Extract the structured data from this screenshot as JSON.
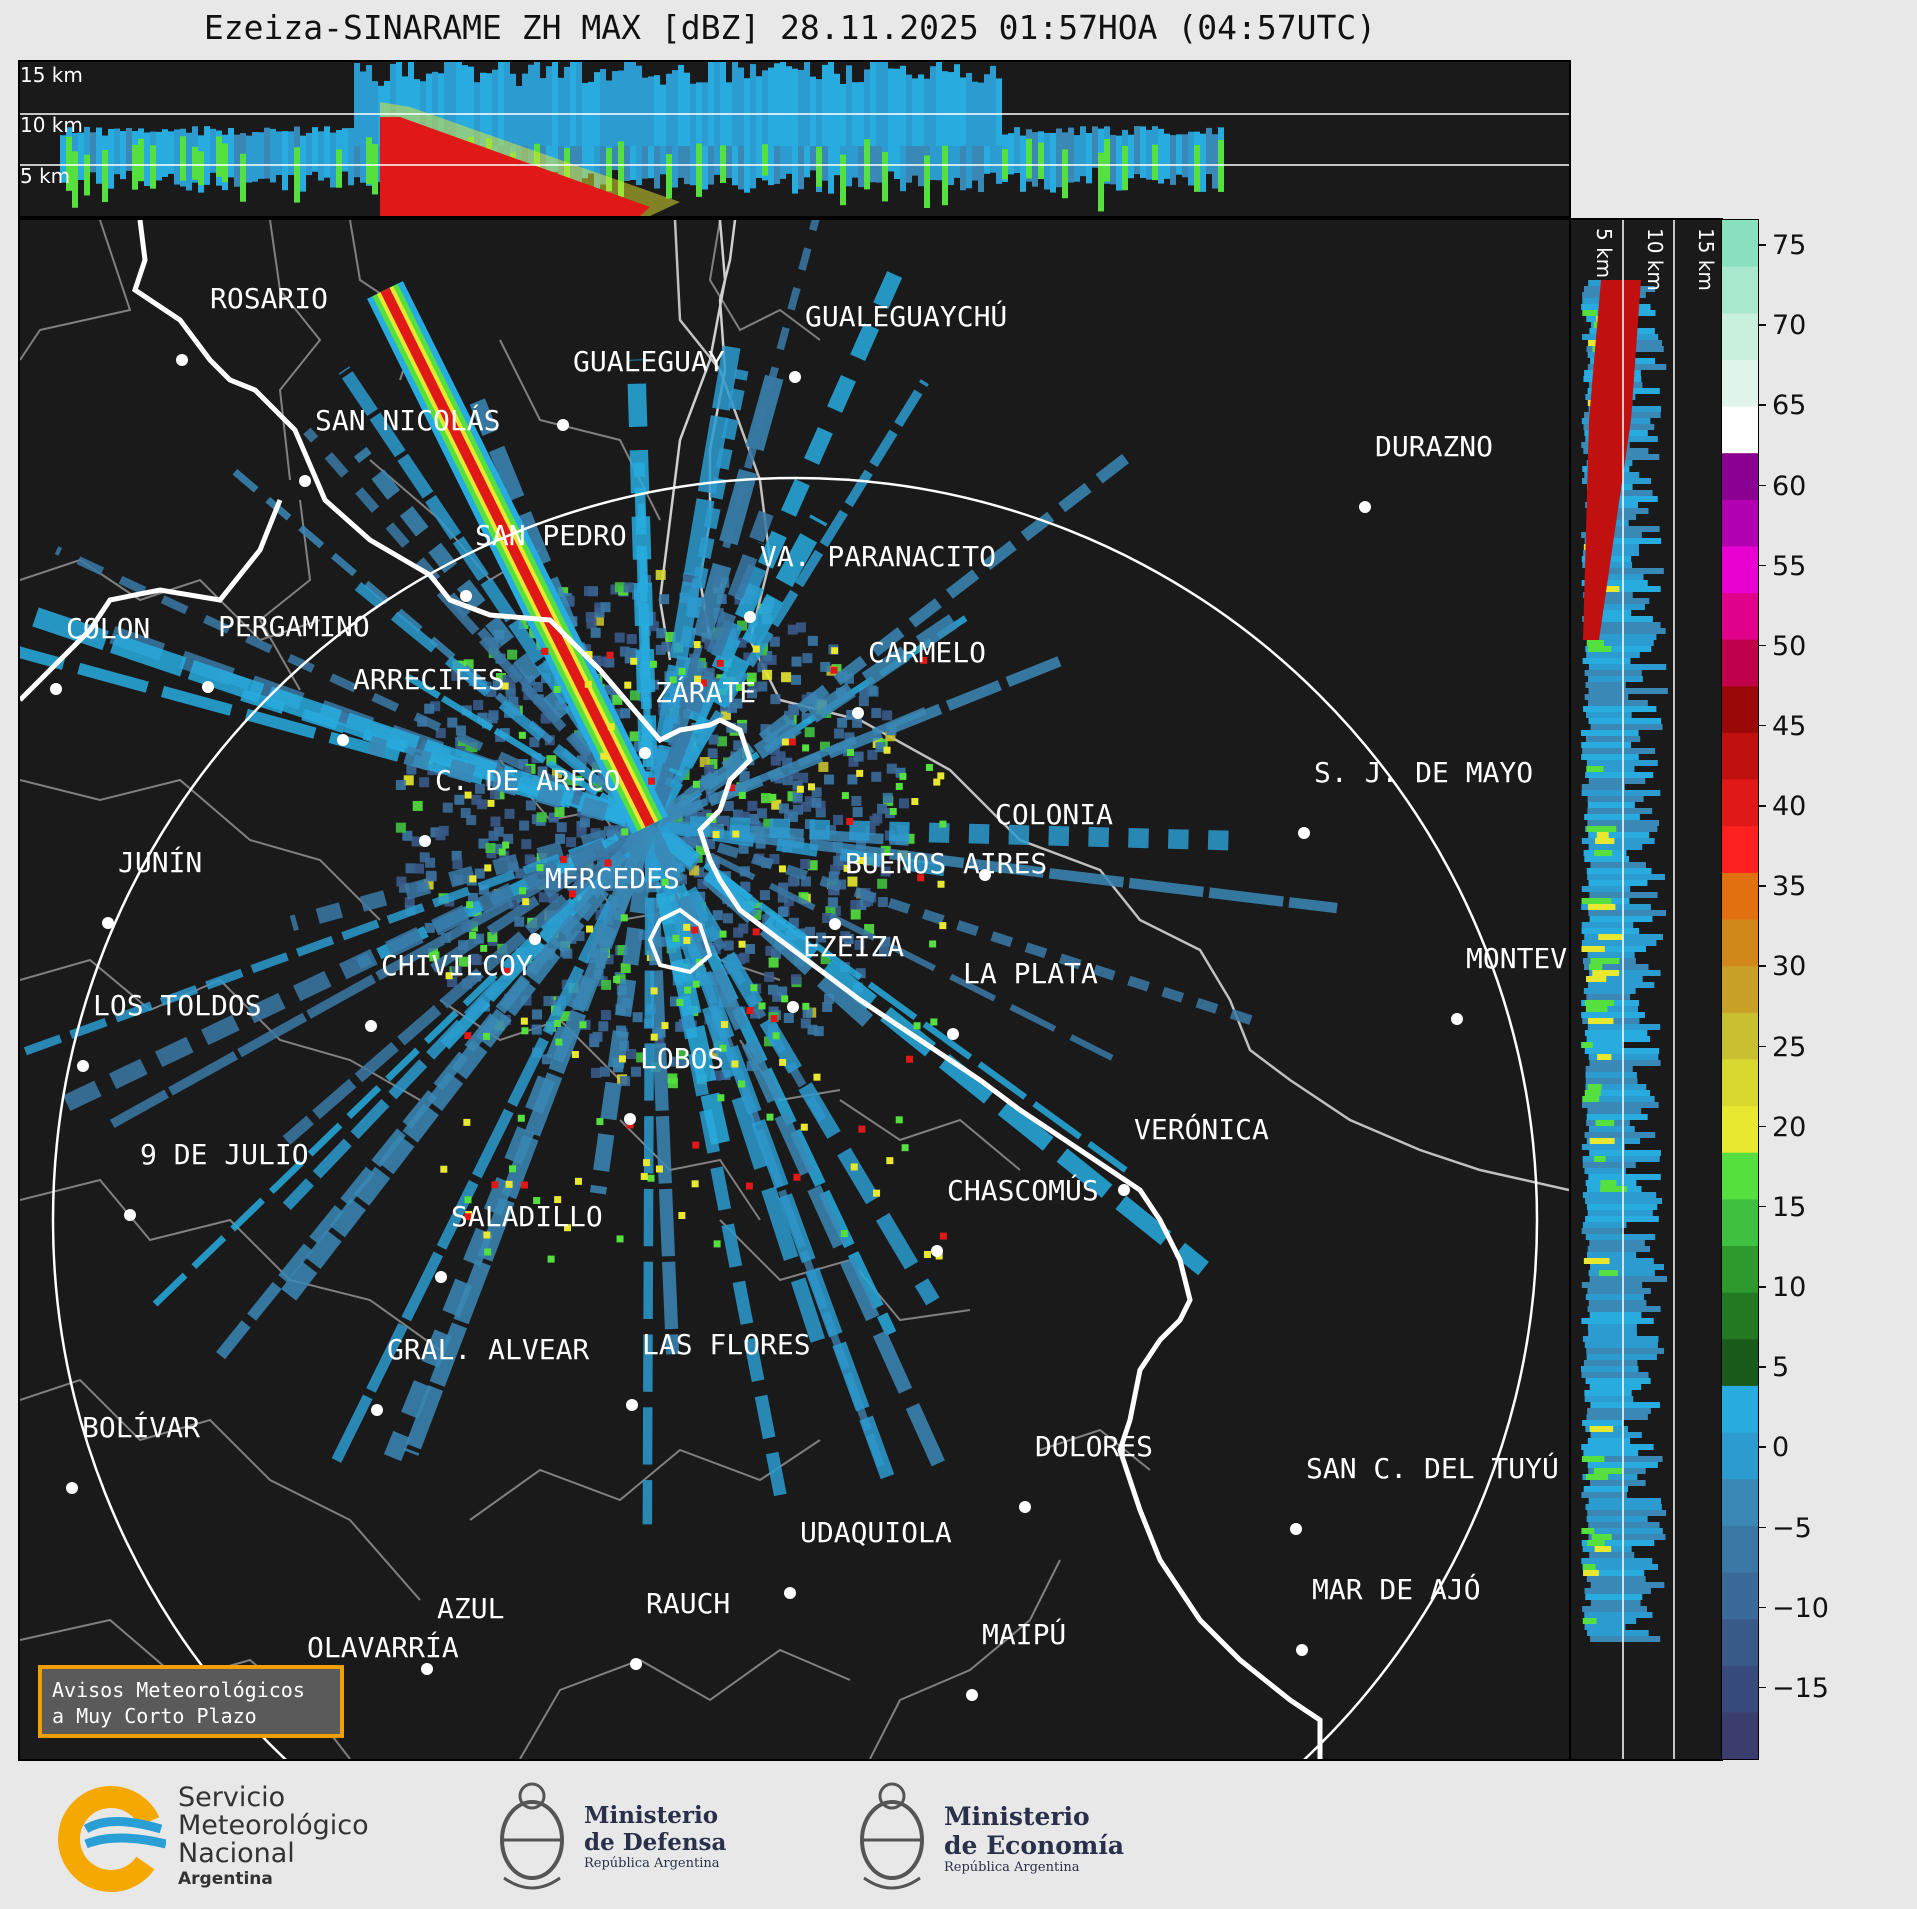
{
  "title": "Ezeiza-SINARAME ZH MAX [dBZ] 28.11.2025 01:57HOA (04:57UTC)",
  "top_panel": {
    "height_labels": [
      "15 km",
      "10 km",
      "5 km"
    ]
  },
  "side_panel": {
    "height_labels": [
      "5 km",
      "10 km",
      "15 km"
    ]
  },
  "colorbar": {
    "ticks": [
      "75",
      "70",
      "65",
      "60",
      "55",
      "50",
      "45",
      "40",
      "35",
      "30",
      "25",
      "20",
      "15",
      "10",
      "5",
      "0",
      "−5",
      "−10",
      "−15"
    ],
    "range": [
      -19.5,
      76.5
    ],
    "colors": {
      "blues": [
        "#3b3d6e",
        "#394a7c",
        "#3a5a8a",
        "#3a6a98",
        "#3a78a6",
        "#3a88b6",
        "#2c9bd0",
        "#28acdf"
      ],
      "greens": [
        "#1a5a1a",
        "#237a23",
        "#2e9a2e",
        "#40c040",
        "#55e040"
      ],
      "yellows": [
        "#e8e830",
        "#d8d830",
        "#c8c030",
        "#c8a028",
        "#d08818",
        "#e07010"
      ],
      "reds": [
        "#ff2020",
        "#e01818",
        "#c01010",
        "#9a0808",
        "#c0004a",
        "#e0008a",
        "#e800d0",
        "#b000b0",
        "#8a0090"
      ],
      "whites": [
        "#ffffff",
        "#e0f5ea",
        "#c8f0dc",
        "#a8e8cc",
        "#88e0be"
      ]
    }
  },
  "cities": [
    {
      "name": "ROSARIO"
    },
    {
      "name": "GUALEGUAYCHÚ"
    },
    {
      "name": "GUALEGUAY"
    },
    {
      "name": "SAN NICOLÁS"
    },
    {
      "name": "DURAZNO"
    },
    {
      "name": "SAN PEDRO"
    },
    {
      "name": "VA. PARANACITO"
    },
    {
      "name": "COLON"
    },
    {
      "name": "PERGAMINO"
    },
    {
      "name": "CARMELO"
    },
    {
      "name": "ARRECIFES"
    },
    {
      "name": "ZÁRATE"
    },
    {
      "name": "S. J. DE MAYO"
    },
    {
      "name": "C. DE ARECO"
    },
    {
      "name": "COLONIA"
    },
    {
      "name": "JUNÍN"
    },
    {
      "name": "BUENOS AIRES"
    },
    {
      "name": "MERCEDES"
    },
    {
      "name": "EZEIZA"
    },
    {
      "name": "MONTEV"
    },
    {
      "name": "CHIVILCOY"
    },
    {
      "name": "LA PLATA"
    },
    {
      "name": "LOS TOLDOS"
    },
    {
      "name": "LOBOS"
    },
    {
      "name": "VERÓNICA"
    },
    {
      "name": "9 DE JULIO"
    },
    {
      "name": "CHASCOMÚS"
    },
    {
      "name": "SALADILLO"
    },
    {
      "name": "GRAL. ALVEAR"
    },
    {
      "name": "LAS FLORES"
    },
    {
      "name": "BOLÍVAR"
    },
    {
      "name": "DOLORES"
    },
    {
      "name": "SAN C. DEL TUYÚ"
    },
    {
      "name": "UDAQUIOLA"
    },
    {
      "name": "MAR DE AJÓ"
    },
    {
      "name": "AZUL"
    },
    {
      "name": "RAUCH"
    },
    {
      "name": "OLAVARRÍA"
    },
    {
      "name": "MAIPÚ"
    }
  ],
  "avisos": {
    "line1": "Avisos Meteorológicos",
    "line2": "a Muy Corto Plazo"
  },
  "logos": {
    "smn": {
      "line1": "Servicio",
      "line2": "Meteorológico",
      "line3": "Nacional",
      "line4": "Argentina"
    },
    "defensa": {
      "line1": "Ministerio",
      "line2": "de Defensa",
      "line3": "República Argentina"
    },
    "economia": {
      "line1": "Ministerio",
      "line2": "de Economía",
      "line3": "República Argentina"
    }
  }
}
